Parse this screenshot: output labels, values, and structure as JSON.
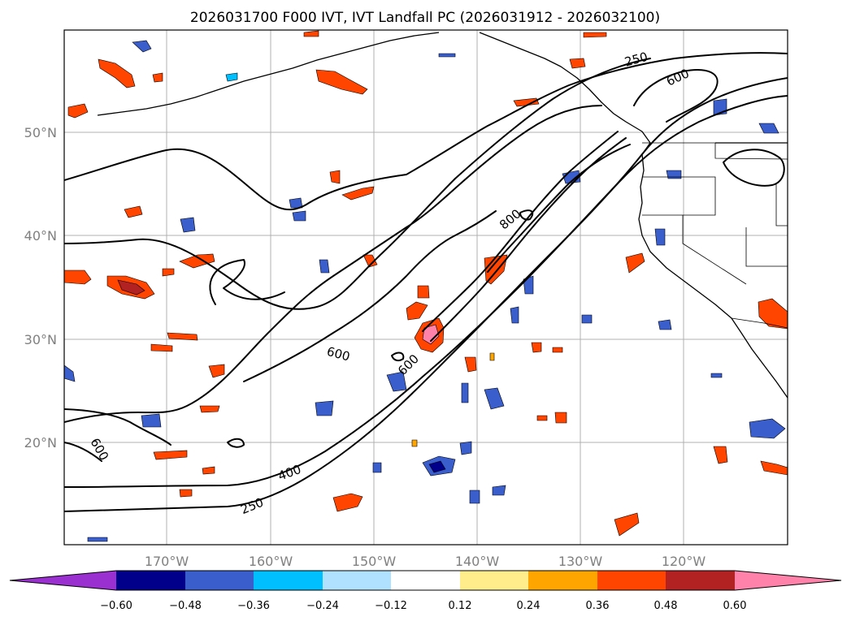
{
  "title": "2026031700 F000 IVT, IVT Landfall PC (2026031912 - 2026032100)",
  "map": {
    "lon_labels": [
      "170°W",
      "160°W",
      "150°W",
      "140°W",
      "130°W",
      "120°W"
    ],
    "lat_labels": [
      "50°N",
      "40°N",
      "30°N",
      "20°N"
    ],
    "contour_levels": [
      "250",
      "400",
      "600",
      "800"
    ],
    "contour_labels": {
      "c250_south": "250",
      "c400_south": "400",
      "c600_west": "600",
      "c600_mid": "600",
      "c600_inner": "600",
      "c800": "800",
      "c250_north": "250",
      "c600_north": "600"
    }
  },
  "colorbar": {
    "ticks": [
      "−0.60",
      "−0.48",
      "−0.36",
      "−0.24",
      "−0.12",
      "0.12",
      "0.24",
      "0.36",
      "0.48",
      "0.60"
    ],
    "colors": [
      "#9b30d0",
      "#00008b",
      "#3a5fcd",
      "#00bfff",
      "#b0e2ff",
      "#ffffff",
      "#ffec8b",
      "#ffa500",
      "#ff4500",
      "#b22222",
      "#ff82ab"
    ]
  }
}
